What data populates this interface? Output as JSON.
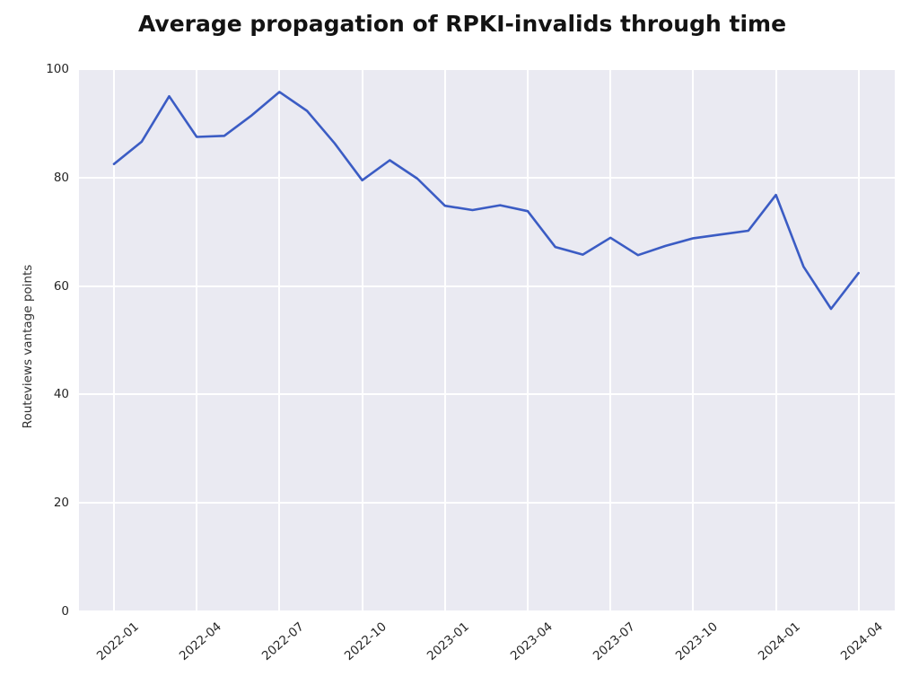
{
  "title": "Average propagation of RPKI-invalids through time",
  "chart_data": {
    "type": "line",
    "title": "Average propagation of RPKI-invalids through time",
    "xlabel": "",
    "ylabel": "Routeviews vantage points",
    "grid": true,
    "legend": false,
    "plot_bg_color": "#eaeaf2",
    "grid_color": "#ffffff",
    "line_color": "#3b5cc4",
    "line_width": 2.6,
    "ylim": [
      0,
      100
    ],
    "xlim_index": [
      -1.27,
      28.31
    ],
    "y_ticks": [
      0,
      20,
      40,
      60,
      80,
      100
    ],
    "x": [
      "2022-01",
      "2022-02",
      "2022-03",
      "2022-04",
      "2022-05",
      "2022-06",
      "2022-07",
      "2022-08",
      "2022-09",
      "2022-10",
      "2022-11",
      "2022-12",
      "2023-01",
      "2023-02",
      "2023-03",
      "2023-04",
      "2023-05",
      "2023-06",
      "2023-07",
      "2023-08",
      "2023-09",
      "2023-10",
      "2023-11",
      "2023-12",
      "2024-01",
      "2024-02",
      "2024-03",
      "2024-04"
    ],
    "x_tick_indices": [
      0,
      3,
      6,
      9,
      12,
      15,
      18,
      21,
      24,
      27
    ],
    "x_tick_labels": [
      "2022-01",
      "2022-04",
      "2022-07",
      "2022-10",
      "2023-01",
      "2023-04",
      "2023-07",
      "2023-10",
      "2024-01",
      "2024-04"
    ],
    "series": [
      {
        "name": "Average propagation of RPKI-invalids",
        "values": [
          82.5,
          86.6,
          95.0,
          87.5,
          87.7,
          91.5,
          95.8,
          92.3,
          86.3,
          79.5,
          83.2,
          79.8,
          74.8,
          74.0,
          74.9,
          73.8,
          67.2,
          65.8,
          68.9,
          65.7,
          67.4,
          68.8,
          69.5,
          70.2,
          76.8,
          63.6,
          55.8,
          62.4
        ]
      }
    ]
  }
}
